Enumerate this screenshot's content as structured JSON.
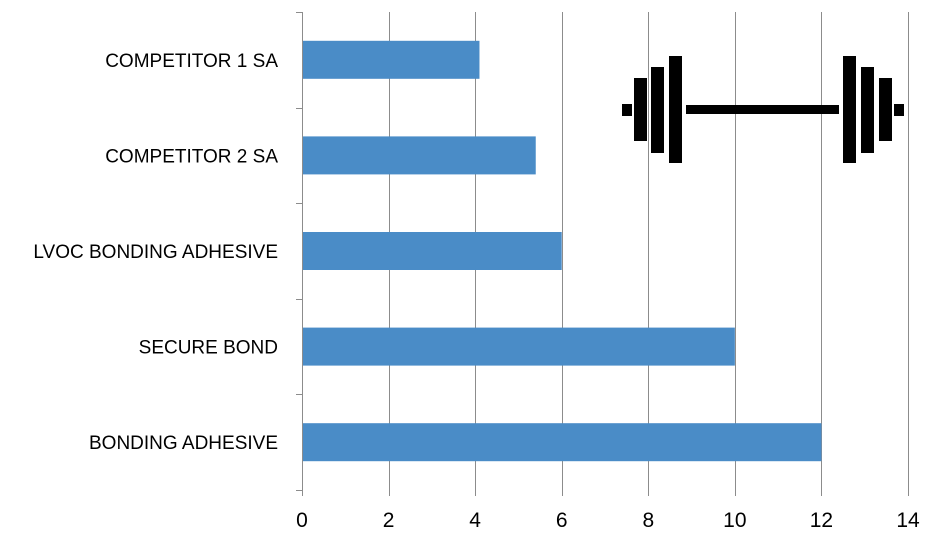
{
  "chart_data": {
    "type": "bar",
    "orientation": "horizontal",
    "title": "",
    "xlabel": "",
    "ylabel": "",
    "categories": [
      "COMPETITOR 1 SA",
      "COMPETITOR 2 SA",
      "LVOC BONDING ADHESIVE",
      "SECURE BOND",
      "BONDING ADHESIVE"
    ],
    "values": [
      4.1,
      5.4,
      6,
      10,
      12
    ],
    "xlim": [
      0,
      14
    ],
    "x_ticks": [
      "0",
      "2",
      "4",
      "6",
      "8",
      "10",
      "12",
      "14"
    ],
    "grid": "vertical gridlines on",
    "legend": "none",
    "bar_color": "#4a8cc7",
    "gridline_color": "#8c8c8c",
    "decoration_icon": "barbell-icon"
  }
}
